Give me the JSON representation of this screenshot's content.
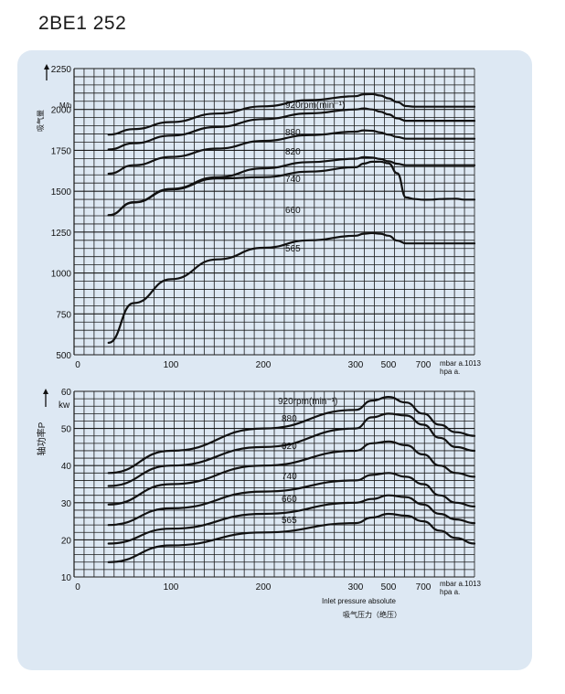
{
  "title": "2BE1 252",
  "colors": {
    "panel": "#dde8f3",
    "grid": "#1a1a1a",
    "curve": "#111111"
  },
  "chart_data": [
    {
      "type": "line",
      "ylabel": "吸气量",
      "yunit": "M/h",
      "ylim": [
        500,
        2250
      ],
      "yticks": [
        500,
        750,
        1000,
        1250,
        1500,
        1750,
        2000,
        2250
      ],
      "xticks": [
        "0",
        "100",
        "200",
        "300",
        "500",
        "700"
      ],
      "xunit": "mbar a.1013",
      "xunit2": "hpa  a.",
      "grid": true,
      "curve_labels": [
        "920rpm(min⁻¹)",
        "880",
        "820",
        "740",
        "660",
        "565"
      ],
      "x": [
        33,
        60,
        100,
        150,
        200,
        250,
        300,
        350,
        400,
        450,
        500,
        550,
        600,
        650,
        700,
        750,
        800,
        850,
        900,
        950,
        1013
      ],
      "series": [
        {
          "name": "920rpm(min⁻¹)",
          "values": [
            1846,
            1880,
            1923,
            1975,
            2019,
            2057,
            2081,
            2093,
            2094,
            2085,
            2068,
            2045,
            2021,
            2017,
            2017,
            2017,
            2017,
            2017,
            2017,
            2017,
            2017
          ]
        },
        {
          "name": "880",
          "values": [
            1755,
            1793,
            1840,
            1893,
            1941,
            1976,
            2000,
            2006,
            2000,
            1986,
            1970,
            1946,
            1931,
            1931,
            1931,
            1931,
            1931,
            1931,
            1931,
            1931,
            1931
          ]
        },
        {
          "name": "820",
          "values": [
            1607,
            1659,
            1710,
            1761,
            1808,
            1843,
            1864,
            1872,
            1870,
            1860,
            1846,
            1832,
            1821,
            1821,
            1821,
            1821,
            1821,
            1821,
            1821,
            1821,
            1821
          ]
        },
        {
          "name": "740",
          "values": [
            1353,
            1433,
            1514,
            1586,
            1640,
            1678,
            1699,
            1708,
            1706,
            1697,
            1683,
            1668,
            1659,
            1659,
            1659,
            1659,
            1659,
            1659,
            1659,
            1659,
            1659
          ]
        },
        {
          "name": "660",
          "values": [
            1353,
            1431,
            1511,
            1578,
            1586,
            1620,
            1647,
            1669,
            1680,
            1681,
            1670,
            1610,
            1462,
            1452,
            1448,
            1449,
            1452,
            1453,
            1454,
            1449,
            1449
          ]
        },
        {
          "name": "565",
          "values": [
            573,
            816,
            962,
            1083,
            1154,
            1200,
            1228,
            1240,
            1244,
            1240,
            1228,
            1198,
            1181,
            1181,
            1181,
            1181,
            1181,
            1181,
            1181,
            1181,
            1181
          ]
        }
      ]
    },
    {
      "type": "line",
      "ylabel": "轴功率P",
      "yunit": "kw",
      "ylim": [
        10,
        60
      ],
      "yticks": [
        10,
        20,
        30,
        40,
        50,
        60
      ],
      "xticks": [
        "0",
        "100",
        "200",
        "300",
        "500",
        "700"
      ],
      "xunit": "mbar a.1013",
      "xunit2": "hpa  a.",
      "xlabel": "Inlet pressure absolute",
      "xlabel_cn": "吸气压力（绝压）",
      "grid": true,
      "curve_labels": [
        "920rpm(min⁻¹)",
        "880",
        "820",
        "740",
        "660",
        "565"
      ],
      "x": [
        33,
        100,
        200,
        300,
        400,
        500,
        600,
        700,
        800,
        900,
        1013
      ],
      "series": [
        {
          "name": "920rpm(min⁻¹)",
          "values": [
            38,
            44,
            50,
            55,
            57.5,
            58.5,
            57,
            54,
            51,
            49,
            48
          ]
        },
        {
          "name": "880",
          "values": [
            34.5,
            40,
            45,
            50,
            53,
            54,
            53.5,
            51,
            47.5,
            45,
            44
          ]
        },
        {
          "name": "820",
          "values": [
            29.5,
            35,
            40,
            44,
            46,
            46.5,
            45.5,
            43,
            40,
            38,
            37
          ]
        },
        {
          "name": "740",
          "values": [
            24,
            28.5,
            33,
            36,
            37.5,
            38,
            37,
            35,
            32,
            30,
            29
          ]
        },
        {
          "name": "660",
          "values": [
            19,
            23,
            27,
            30,
            31,
            32,
            31.5,
            29.5,
            27,
            25.5,
            24.5
          ]
        },
        {
          "name": "565",
          "values": [
            14,
            18.5,
            22,
            24.5,
            26,
            27,
            26.5,
            25,
            22.5,
            20.5,
            19
          ]
        }
      ]
    }
  ]
}
